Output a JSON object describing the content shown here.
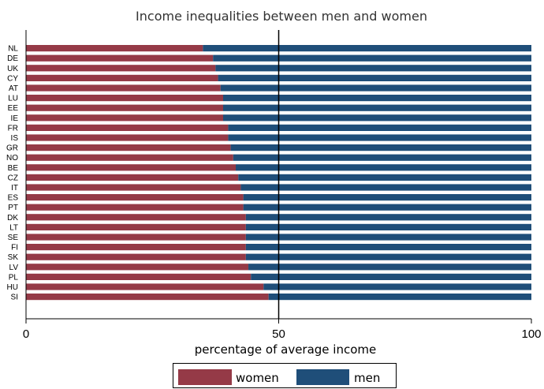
{
  "chart_data": {
    "type": "bar",
    "orientation": "horizontal",
    "stacked": true,
    "title": "Income inequalities between men and women",
    "xlabel": "percentage of average income",
    "xlim": [
      0,
      100
    ],
    "xticks": [
      "0",
      "50",
      "100"
    ],
    "reference_line": 50,
    "grid": false,
    "legend_position": "bottom",
    "categories": [
      "NL",
      "DE",
      "UK",
      "CY",
      "AT",
      "LU",
      "EE",
      "IE",
      "FR",
      "IS",
      "GR",
      "NO",
      "BE",
      "CZ",
      "IT",
      "ES",
      "PT",
      "DK",
      "LT",
      "SE",
      "FI",
      "SK",
      "LV",
      "PL",
      "HU",
      "SI"
    ],
    "series": [
      {
        "name": "women",
        "color": "#953a47",
        "values": [
          35,
          37,
          37.5,
          38,
          38.5,
          39,
          39,
          39,
          40,
          40,
          40.5,
          41,
          41.5,
          42,
          42.5,
          43,
          43,
          43.5,
          43.5,
          43.5,
          43.5,
          43.5,
          44,
          44.5,
          47,
          48
        ]
      },
      {
        "name": "men",
        "color": "#1f4e79",
        "values": [
          65,
          63,
          62.5,
          62,
          61.5,
          61,
          61,
          61,
          60,
          60,
          59.5,
          59,
          58.5,
          58,
          57.5,
          57,
          57,
          56.5,
          56.5,
          56.5,
          56.5,
          56.5,
          56,
          55.5,
          53,
          52
        ]
      }
    ]
  }
}
